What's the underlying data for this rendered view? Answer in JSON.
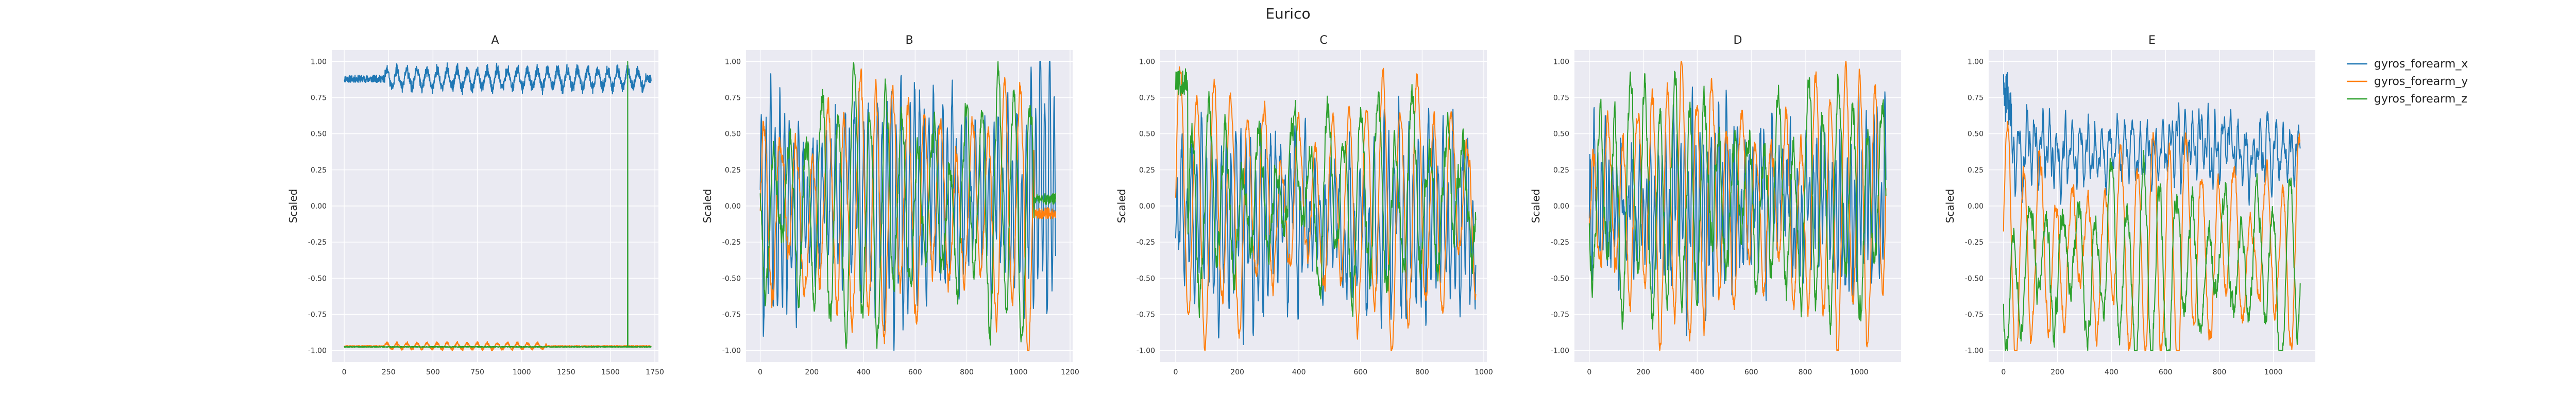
{
  "figure": {
    "title": "Eurico",
    "legend": {
      "placement": "upper-right-outside",
      "items": [
        "gyros_forearm_x",
        "gyros_forearm_y",
        "gyros_forearm_z"
      ]
    },
    "colors": {
      "gyros_forearm_x": "#1f77b4",
      "gyros_forearm_y": "#ff7f0e",
      "gyros_forearm_z": "#2ca02c",
      "plot_bg": "#eaeaf2",
      "grid": "#ffffff"
    }
  },
  "chart_data": [
    {
      "type": "line",
      "title": "A",
      "xlabel": "",
      "ylabel": "Scaled",
      "xlim": [
        -70,
        1770
      ],
      "ylim": [
        -1.08,
        1.08
      ],
      "xticks": [
        0,
        250,
        500,
        750,
        1000,
        1250,
        1500,
        1750
      ],
      "yticks": [
        -1.0,
        -0.75,
        -0.5,
        -0.25,
        0.0,
        0.25,
        0.5,
        0.75,
        1.0
      ],
      "series": [
        {
          "name": "gyros_forearm_x",
          "pattern": "flat",
          "n": 1730,
          "base": 0.88,
          "amp": 0.025,
          "burst": [
            230,
            1700
          ],
          "burst_amp": 0.06,
          "seed": 11
        },
        {
          "name": "gyros_forearm_y",
          "pattern": "flat",
          "n": 1730,
          "base": -0.97,
          "amp": 0.004,
          "burst": [
            230,
            1140
          ],
          "burst_amp": 0.02,
          "seed": 12
        },
        {
          "name": "gyros_forearm_z",
          "pattern": "flat",
          "n": 1730,
          "base": -0.975,
          "amp": 0.003,
          "burst": [
            0,
            0
          ],
          "burst_amp": 0,
          "spike_at": 1597,
          "spike_val": 1.0,
          "seed": 13
        }
      ]
    },
    {
      "type": "line",
      "title": "B",
      "xlabel": "",
      "ylabel": "Scaled",
      "xlim": [
        -55,
        1210
      ],
      "ylim": [
        -1.08,
        1.08
      ],
      "xticks": [
        0,
        200,
        400,
        600,
        800,
        1000,
        1200
      ],
      "yticks": [
        -1.0,
        -0.75,
        -0.5,
        -0.25,
        0.0,
        0.25,
        0.5,
        0.75,
        1.0
      ],
      "series": [
        {
          "name": "gyros_forearm_x",
          "pattern": "osc",
          "n": 1145,
          "period": 18,
          "amp": 0.75,
          "base": 0.05,
          "noise": 0.25,
          "seed": 21
        },
        {
          "name": "gyros_forearm_y",
          "pattern": "osc",
          "n": 1145,
          "period": 62,
          "amp": 0.85,
          "base": 0.0,
          "noise": 0.12,
          "seed": 22,
          "tail_after": 1060,
          "tail_val": -0.05
        },
        {
          "name": "gyros_forearm_z",
          "pattern": "osc",
          "n": 1145,
          "period": 62,
          "amp": 0.8,
          "base": 0.0,
          "noise": 0.15,
          "seed": 23,
          "phase": 0.4,
          "tail_after": 1060,
          "tail_val": 0.05
        }
      ]
    },
    {
      "type": "line",
      "title": "C",
      "xlabel": "",
      "ylabel": "Scaled",
      "xlim": [
        -50,
        1010
      ],
      "ylim": [
        -1.08,
        1.08
      ],
      "xticks": [
        0,
        200,
        400,
        600,
        800,
        1000
      ],
      "yticks": [
        -1.0,
        -0.75,
        -0.5,
        -0.25,
        0.0,
        0.25,
        0.5,
        0.75,
        1.0
      ],
      "series": [
        {
          "name": "gyros_forearm_x",
          "pattern": "osc",
          "n": 975,
          "period": 16,
          "amp": 0.55,
          "base": -0.1,
          "noise": 0.25,
          "seed": 31
        },
        {
          "name": "gyros_forearm_y",
          "pattern": "osc",
          "n": 975,
          "period": 55,
          "amp": 0.85,
          "base": 0.0,
          "noise": 0.1,
          "seed": 32
        },
        {
          "name": "gyros_forearm_z",
          "pattern": "osc",
          "n": 975,
          "period": 55,
          "amp": 0.6,
          "base": 0.05,
          "noise": 0.2,
          "seed": 33,
          "phase": 0.3,
          "start_high": 0.85
        }
      ]
    },
    {
      "type": "line",
      "title": "D",
      "xlabel": "",
      "ylabel": "Scaled",
      "xlim": [
        -55,
        1155
      ],
      "ylim": [
        -1.08,
        1.08
      ],
      "xticks": [
        0,
        200,
        400,
        600,
        800,
        1000
      ],
      "yticks": [
        -1.0,
        -0.75,
        -0.5,
        -0.25,
        0.0,
        0.25,
        0.5,
        0.75,
        1.0
      ],
      "series": [
        {
          "name": "gyros_forearm_x",
          "pattern": "osc",
          "n": 1100,
          "period": 14,
          "amp": 0.5,
          "base": 0.0,
          "noise": 0.25,
          "seed": 41
        },
        {
          "name": "gyros_forearm_y",
          "pattern": "osc",
          "n": 1100,
          "period": 55,
          "amp": 0.9,
          "base": 0.0,
          "noise": 0.12,
          "seed": 42
        },
        {
          "name": "gyros_forearm_z",
          "pattern": "osc",
          "n": 1100,
          "period": 55,
          "amp": 0.75,
          "base": 0.05,
          "noise": 0.18,
          "seed": 43,
          "phase": 0.5
        }
      ]
    },
    {
      "type": "line",
      "title": "E",
      "xlabel": "",
      "ylabel": "Scaled",
      "xlim": [
        -55,
        1155
      ],
      "ylim": [
        -1.08,
        1.08
      ],
      "xticks": [
        0,
        200,
        400,
        600,
        800,
        1000
      ],
      "yticks": [
        -1.0,
        -0.75,
        -0.5,
        -0.25,
        0.0,
        0.25,
        0.5,
        0.75,
        1.0
      ],
      "series": [
        {
          "name": "gyros_forearm_x",
          "pattern": "osc",
          "n": 1100,
          "period": 12,
          "amp": 0.12,
          "base": 0.38,
          "noise": 0.12,
          "seed": 51,
          "burst_start": 0.75
        },
        {
          "name": "gyros_forearm_y",
          "pattern": "osc",
          "n": 1100,
          "period": 60,
          "amp": 0.75,
          "base": -0.3,
          "noise": 0.1,
          "seed": 52
        },
        {
          "name": "gyros_forearm_z",
          "pattern": "osc",
          "n": 1100,
          "period": 60,
          "amp": 0.6,
          "base": -0.4,
          "noise": 0.15,
          "seed": 53,
          "phase": 0.6
        }
      ]
    }
  ]
}
